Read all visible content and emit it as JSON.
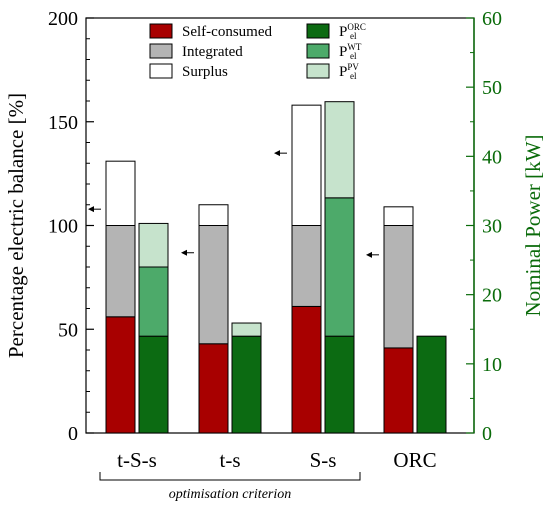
{
  "chart_data": {
    "type": "bar",
    "categories": [
      "t-S-s",
      "t-s",
      "S-s",
      "ORC"
    ],
    "left_axis": {
      "label": "Percentage electric balance [%]",
      "ylim": [
        0,
        200
      ],
      "ticks": [
        "0",
        "50",
        "100",
        "150",
        "200"
      ],
      "tick_values": [
        0,
        50,
        100,
        150,
        200
      ]
    },
    "right_axis": {
      "label": "Nominal Power [kW]",
      "ylim": [
        0,
        60
      ],
      "ticks": [
        "0",
        "10",
        "20",
        "30",
        "40",
        "50",
        "60"
      ],
      "tick_values": [
        0,
        10,
        20,
        30,
        40,
        50,
        60
      ],
      "color": "#0a6b0a"
    },
    "left_series": [
      {
        "name": "Self-consumed",
        "values": [
          56,
          43,
          61,
          41
        ],
        "color": "#a80000"
      },
      {
        "name": "Integrated",
        "values": [
          44,
          57,
          39,
          59
        ],
        "color": "#b4b4b4"
      },
      {
        "name": "Surplus",
        "values": [
          31,
          10,
          58,
          9
        ],
        "color": "#ffffff"
      }
    ],
    "right_series": [
      {
        "name": "P",
        "sub": "el",
        "sup": "ORC",
        "values": [
          14,
          14,
          14,
          14
        ],
        "color": "#0c6b12"
      },
      {
        "name": "P",
        "sub": "el",
        "sup": "WT",
        "values": [
          10,
          0,
          20,
          0
        ],
        "color": "#4daa6a"
      },
      {
        "name": "P",
        "sub": "el",
        "sup": "PV",
        "values": [
          6.3,
          1.9,
          13.9,
          0
        ],
        "color": "#c6e3cc"
      }
    ],
    "annotation": "optimisation criterion",
    "annotation_span": [
      "t-S-s",
      "S-s"
    ]
  }
}
